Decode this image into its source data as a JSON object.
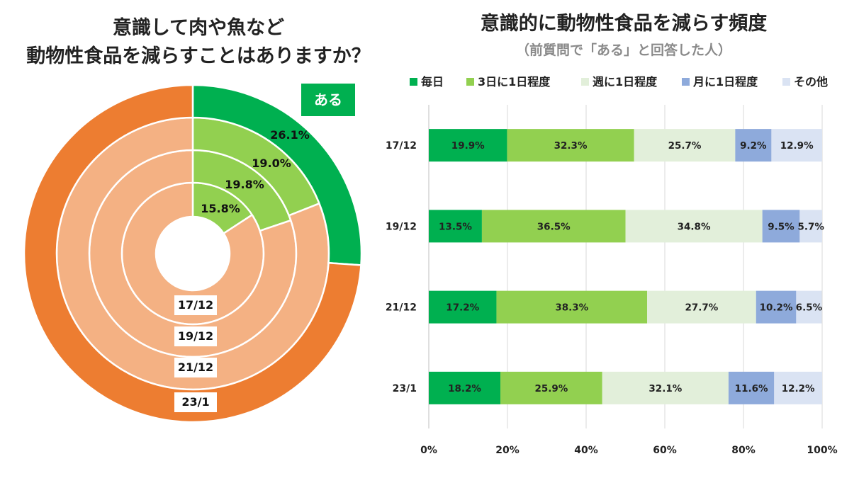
{
  "chart_data": [
    {
      "type": "pie",
      "title_lines": [
        "意識して肉や魚など",
        "動物性食品を減らすことはありますか？"
      ],
      "badge": "ある",
      "colors": {
        "yes_outer": "#00b050",
        "yes_inner": "#92d050",
        "no_outer": "#ed7d31",
        "no_inner": "#f4b183"
      },
      "rings": [
        {
          "label": "17/12",
          "yes_value": 15.8,
          "yes_label": "15.8%"
        },
        {
          "label": "19/12",
          "yes_value": 19.8,
          "yes_label": "19.8%"
        },
        {
          "label": "21/12",
          "yes_value": 19.0,
          "yes_label": "19.0%"
        },
        {
          "label": "23/1",
          "yes_value": 26.1,
          "yes_label": "26.1%"
        }
      ]
    },
    {
      "type": "bar",
      "stacked": true,
      "orientation": "horizontal",
      "title": "意識的に動物性食品を減らす頻度",
      "subtitle": "（前質問で「ある」と回答した人）",
      "categories": [
        "17/12",
        "19/12",
        "21/12",
        "23/1"
      ],
      "x_ticks": [
        "0%",
        "20%",
        "40%",
        "60%",
        "80%",
        "100%"
      ],
      "xlim": [
        0,
        100
      ],
      "grid": true,
      "legend_position": "top",
      "series": [
        {
          "name": "毎日",
          "color": "#00b050",
          "values": [
            19.9,
            13.5,
            17.2,
            18.2
          ],
          "labels": [
            "19.9%",
            "13.5%",
            "17.2%",
            "18.2%"
          ]
        },
        {
          "name": "3日に1日程度",
          "color": "#92d050",
          "values": [
            32.3,
            36.5,
            38.3,
            25.9
          ],
          "labels": [
            "32.3%",
            "36.5%",
            "38.3%",
            "25.9%"
          ]
        },
        {
          "name": "週に1日程度",
          "color": "#e2efda",
          "values": [
            25.7,
            34.8,
            27.7,
            32.1
          ],
          "labels": [
            "25.7%",
            "34.8%",
            "27.7%",
            "32.1%"
          ]
        },
        {
          "name": "月に1日程度",
          "color": "#8eaadb",
          "values": [
            9.2,
            9.5,
            10.2,
            11.6
          ],
          "labels": [
            "9.2%",
            "9.5%",
            "10.2%",
            "11.6%"
          ]
        },
        {
          "name": "その他",
          "color": "#dae3f3",
          "values": [
            12.9,
            5.7,
            6.5,
            12.2
          ],
          "labels": [
            "12.9%",
            "5.7%",
            "6.5%",
            "12.2%"
          ]
        }
      ]
    }
  ]
}
